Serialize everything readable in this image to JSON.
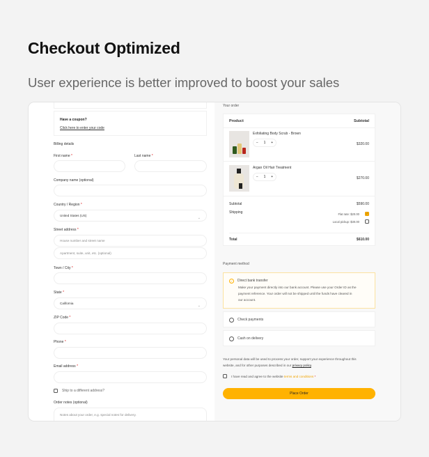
{
  "heading": "Checkout Optimized",
  "subheading": "User experience is better improved to boost your sales",
  "coupon": {
    "title": "Have a coupon?",
    "link": "Click here to enter your code"
  },
  "billing": {
    "title": "Billing details",
    "first_name": "First name",
    "last_name": "Last name",
    "company": "Company name (optional)",
    "country": "Country / Region",
    "country_value": "United States (US)",
    "street": "Street address",
    "street_ph1": "House number and street name",
    "street_ph2": "Apartment, suite, unit, etc. (optional)",
    "town": "Town / City",
    "state": "State",
    "state_value": "California",
    "zip": "ZIP Code",
    "phone": "Phone",
    "email": "Email address",
    "ship_different": "Ship to a different address?",
    "notes": "Order notes (optional)",
    "notes_ph": "Notes about your order, e.g. special notes for delivery.",
    "required": "*"
  },
  "order": {
    "title": "Your order",
    "col_product": "Product",
    "col_subtotal": "Subtotal",
    "items": [
      {
        "name": "Exfoliating Body Scrub - Brown",
        "qty": "1",
        "price": "$320.00"
      },
      {
        "name": "Argan Oil Hair Treatment",
        "qty": "1",
        "price": "$270.00"
      }
    ],
    "subtotal_label": "Subtotal",
    "subtotal": "$590.00",
    "shipping_label": "Shipping",
    "shipping_options": [
      {
        "label": "Flat rate: $20.00",
        "checked": true
      },
      {
        "label": "Local pickup: $30.00",
        "checked": false
      }
    ],
    "total_label": "Total",
    "total": "$610.00"
  },
  "payment": {
    "title": "Payment method",
    "methods": [
      {
        "label": "Direct bank transfer",
        "selected": true,
        "desc": [
          "Make your payment directly into our bank account. Please use your Order ID as the",
          "payment reference. Your order will not be shipped until the funds have cleared in",
          "our account."
        ]
      },
      {
        "label": "Check payments",
        "selected": false
      },
      {
        "label": "Cash on delivery",
        "selected": false
      }
    ],
    "privacy_1": "Your personal data will be used to process your order, support your experience throughout this",
    "privacy_2": "website, and for other purposes described in our",
    "privacy_link": "privacy policy",
    "terms_pre": "I have read and agree to the website",
    "terms_link": "terms and conditions",
    "place_order": "Place Order"
  },
  "colors": {
    "accent": "#ffb200",
    "required": "#d22222"
  }
}
